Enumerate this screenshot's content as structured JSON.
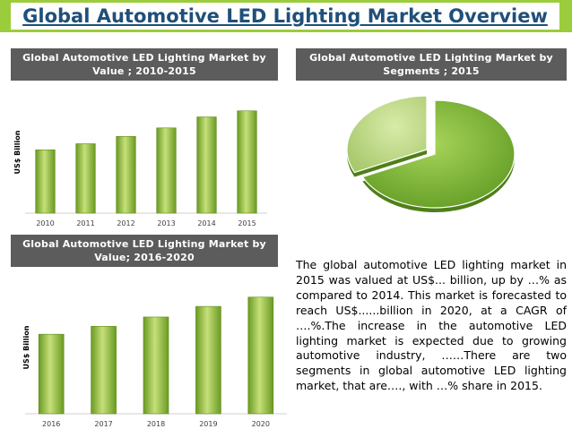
{
  "page": {
    "title": "Global Automotive LED Lighting Market Overview",
    "description": "The global automotive LED lighting market in 2015 was valued at US$... billion, up by …% as compared to 2014. This market is forecasted to reach US$......billion in 2020, at a CAGR of ….%.The increase in the automotive LED lighting market is expected due to growing automotive industry, ……There are two segments in global automotive LED lighting market, that are…., with …% share in 2015."
  },
  "colors": {
    "accent": "#9bcc3b",
    "header_bg": "#5c5c5c",
    "title": "#1f4f7a",
    "bar_light": "#c6e07a",
    "bar_dark": "#6a9a22"
  },
  "chart_data": [
    {
      "type": "bar",
      "title": "Global Automotive LED Lighting Market by Value ; 2010-2015",
      "ylabel": "US$ Billion",
      "categories": [
        "2010",
        "2011",
        "2012",
        "2013",
        "2014",
        "2015"
      ],
      "values": [
        52,
        57,
        63,
        70,
        79,
        84
      ],
      "ylim": [
        0,
        100
      ],
      "grid": false
    },
    {
      "type": "pie",
      "title": "Global Automotive LED Lighting Market by Segments ; 2015",
      "values": [
        68,
        32
      ],
      "colors": [
        "#8fc23f",
        "#c2dc8c"
      ]
    },
    {
      "type": "bar",
      "title": "Global Automotive LED Lighting Market by Value; 2016-2020",
      "ylabel": "US$ Billion",
      "categories": [
        "2016",
        "2017",
        "2018",
        "2019",
        "2020"
      ],
      "values": [
        60,
        66,
        73,
        81,
        88
      ],
      "ylim": [
        0,
        100
      ],
      "grid": false
    }
  ]
}
